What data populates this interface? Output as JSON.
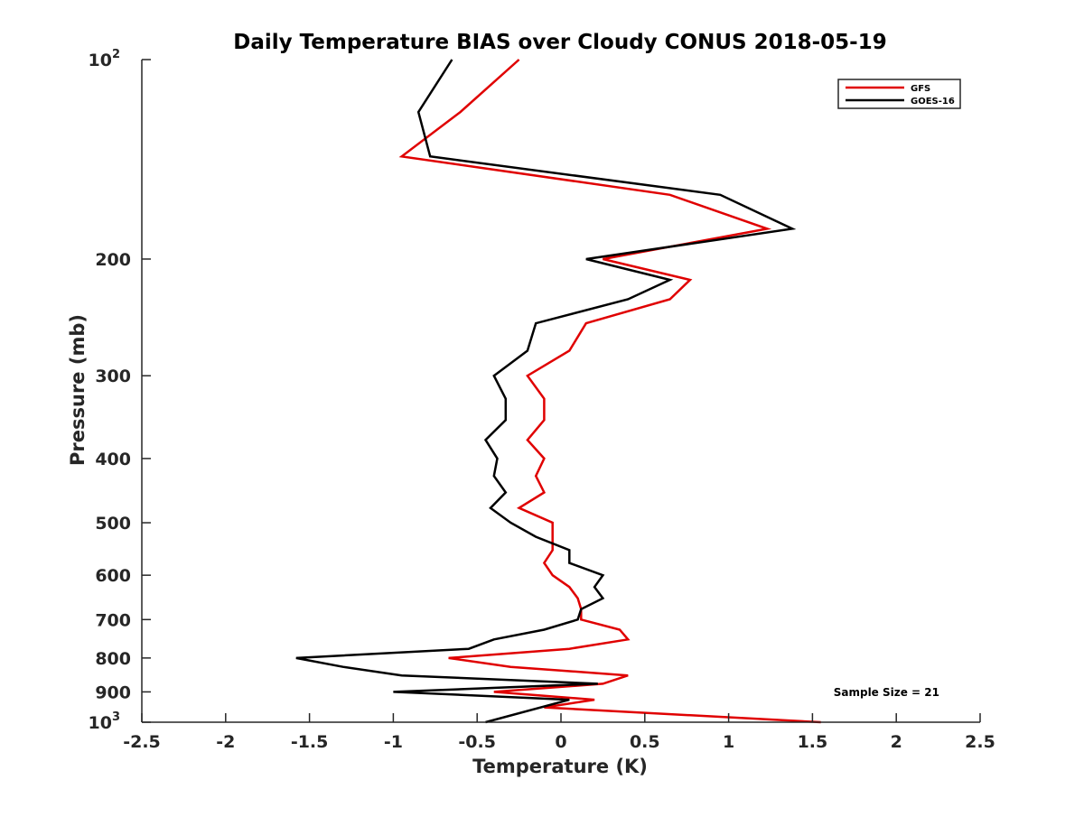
{
  "chart_data": {
    "type": "line",
    "title": "Daily Temperature BIAS over Cloudy CONUS 2018-05-19",
    "xlabel": "Temperature (K)",
    "ylabel": "Pressure (mb)",
    "xlim": [
      -2.5,
      2.5
    ],
    "ylim": [
      1000,
      100
    ],
    "y_scale": "log",
    "y_reversed": true,
    "grid": false,
    "legend_position": "top-right",
    "x_ticks": [
      {
        "value": -2.5,
        "label": "-2.5"
      },
      {
        "value": -2,
        "label": "-2"
      },
      {
        "value": -1.5,
        "label": "-1.5"
      },
      {
        "value": -1,
        "label": "-1"
      },
      {
        "value": -0.5,
        "label": "-0.5"
      },
      {
        "value": 0,
        "label": "0"
      },
      {
        "value": 0.5,
        "label": "0.5"
      },
      {
        "value": 1,
        "label": "1"
      },
      {
        "value": 1.5,
        "label": "1.5"
      },
      {
        "value": 2,
        "label": "2"
      },
      {
        "value": 2.5,
        "label": "2.5"
      }
    ],
    "y_ticks": [
      {
        "value": 100,
        "label": "10",
        "sup": "2"
      },
      {
        "value": 200,
        "label": "200"
      },
      {
        "value": 300,
        "label": "300"
      },
      {
        "value": 400,
        "label": "400"
      },
      {
        "value": 500,
        "label": "500"
      },
      {
        "value": 600,
        "label": "600"
      },
      {
        "value": 700,
        "label": "700"
      },
      {
        "value": 800,
        "label": "800"
      },
      {
        "value": 900,
        "label": "900"
      },
      {
        "value": 1000,
        "label": "10",
        "sup": "3"
      }
    ],
    "series": [
      {
        "name": "GFS",
        "color": "#e00000",
        "points": [
          [
            -0.25,
            100
          ],
          [
            -0.6,
            120
          ],
          [
            -0.95,
            140
          ],
          [
            0.65,
            160
          ],
          [
            1.23,
            180
          ],
          [
            0.25,
            200
          ],
          [
            0.77,
            215
          ],
          [
            0.65,
            230
          ],
          [
            0.15,
            250
          ],
          [
            0.05,
            275
          ],
          [
            -0.2,
            300
          ],
          [
            -0.1,
            325
          ],
          [
            -0.1,
            350
          ],
          [
            -0.2,
            375
          ],
          [
            -0.1,
            400
          ],
          [
            -0.15,
            425
          ],
          [
            -0.1,
            450
          ],
          [
            -0.25,
            475
          ],
          [
            -0.05,
            500
          ],
          [
            -0.05,
            525
          ],
          [
            -0.05,
            550
          ],
          [
            -0.1,
            575
          ],
          [
            -0.05,
            600
          ],
          [
            0.05,
            625
          ],
          [
            0.1,
            650
          ],
          [
            0.12,
            675
          ],
          [
            0.12,
            700
          ],
          [
            0.35,
            725
          ],
          [
            0.4,
            750
          ],
          [
            0.05,
            775
          ],
          [
            -0.67,
            800
          ],
          [
            -0.3,
            825
          ],
          [
            0.4,
            850
          ],
          [
            0.25,
            875
          ],
          [
            -0.4,
            900
          ],
          [
            0.2,
            925
          ],
          [
            -0.1,
            950
          ],
          [
            1.55,
            1000
          ]
        ]
      },
      {
        "name": "GOES-16",
        "color": "#000000",
        "points": [
          [
            -0.65,
            100
          ],
          [
            -0.85,
            120
          ],
          [
            -0.78,
            140
          ],
          [
            0.95,
            160
          ],
          [
            1.38,
            180
          ],
          [
            0.15,
            200
          ],
          [
            0.65,
            215
          ],
          [
            0.4,
            230
          ],
          [
            -0.15,
            250
          ],
          [
            -0.2,
            275
          ],
          [
            -0.4,
            300
          ],
          [
            -0.33,
            325
          ],
          [
            -0.33,
            350
          ],
          [
            -0.45,
            375
          ],
          [
            -0.38,
            400
          ],
          [
            -0.4,
            425
          ],
          [
            -0.33,
            450
          ],
          [
            -0.42,
            475
          ],
          [
            -0.3,
            500
          ],
          [
            -0.15,
            525
          ],
          [
            0.05,
            550
          ],
          [
            0.05,
            575
          ],
          [
            0.25,
            600
          ],
          [
            0.2,
            625
          ],
          [
            0.25,
            650
          ],
          [
            0.12,
            675
          ],
          [
            0.1,
            700
          ],
          [
            -0.1,
            725
          ],
          [
            -0.4,
            750
          ],
          [
            -0.55,
            775
          ],
          [
            -1.58,
            800
          ],
          [
            -1.3,
            825
          ],
          [
            -0.95,
            850
          ],
          [
            0.22,
            875
          ],
          [
            -1.0,
            900
          ],
          [
            0.05,
            925
          ],
          [
            -0.45,
            1000
          ]
        ]
      }
    ],
    "annotations": [
      {
        "text": "Sample Size = 21"
      }
    ]
  }
}
